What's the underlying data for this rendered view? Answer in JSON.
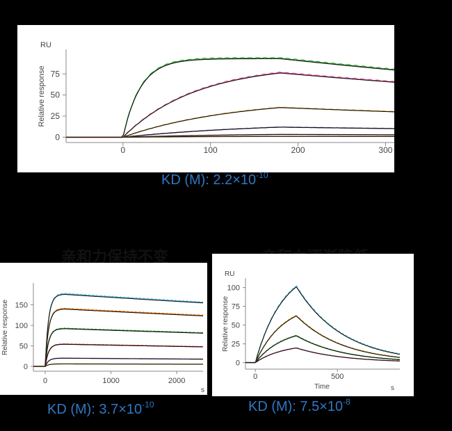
{
  "titles": {
    "bottom_left": "亲和力保持不变",
    "bottom_right": "亲和力逐渐降低"
  },
  "chart_data": [
    {
      "type": "line",
      "unit_label": "RU",
      "xlabel": "",
      "ylabel": "Relative response",
      "xlim": [
        -65,
        310
      ],
      "ylim": [
        -3,
        100
      ],
      "xticks": [
        0,
        100,
        200,
        300
      ],
      "yticks": [
        0,
        25,
        50,
        75
      ],
      "kinetics": {
        "t_on": 0,
        "t_off": 180
      },
      "series": [
        {
          "color": "#2ca02c",
          "rmax": 93,
          "kon": 0.05,
          "koff": 0.0012,
          "t_start": 0
        },
        {
          "color": "#e0509a",
          "rmax": 86,
          "kon": 0.012,
          "koff": 0.0012,
          "t_start": 0
        },
        {
          "color": "#e0a020",
          "rmax": 46,
          "kon": 0.008,
          "koff": 0.0012,
          "t_start": 0
        },
        {
          "color": "#6a3d9a",
          "rmax": 18,
          "kon": 0.006,
          "koff": 0.0012,
          "t_start": 0
        },
        {
          "color": "#8c564b",
          "rmax": 5,
          "kon": 0.006,
          "koff": 0.0012,
          "t_start": 0
        },
        {
          "color": "#ff7f0e",
          "rmax": 1.5,
          "kon": 0.006,
          "koff": 0.0012,
          "t_start": 0
        }
      ],
      "kd_prefix": "KD (M): 2.2×10",
      "kd_exponent": "-10"
    },
    {
      "type": "line",
      "unit_label": "",
      "xlabel": "",
      "ylabel": "Relative response",
      "x_unit": "s",
      "xlim": [
        -180,
        2400
      ],
      "ylim": [
        -5,
        195
      ],
      "xticks": [
        0,
        1000,
        2000
      ],
      "yticks": [
        0,
        50,
        100,
        150
      ],
      "kinetics": {
        "t_on": 0,
        "t_off": 300
      },
      "series": [
        {
          "color": "#5bc0de",
          "rmax": 176,
          "kon": 0.02,
          "koff": 6e-05,
          "t_start": 0
        },
        {
          "color": "#ff7f0e",
          "rmax": 140,
          "kon": 0.02,
          "koff": 6e-05,
          "t_start": 0
        },
        {
          "color": "#2ca02c",
          "rmax": 92,
          "kon": 0.02,
          "koff": 6e-05,
          "t_start": 0
        },
        {
          "color": "#d62728",
          "rmax": 54,
          "kon": 0.02,
          "koff": 6e-05,
          "t_start": 0
        },
        {
          "color": "#9467bd",
          "rmax": 20,
          "kon": 0.02,
          "koff": 6e-05,
          "t_start": 0
        },
        {
          "color": "#e0c020",
          "rmax": 6,
          "kon": 0.02,
          "koff": 6e-05,
          "t_start": 0
        }
      ],
      "kd_prefix": "KD (M): 3.7×10",
      "kd_exponent": "-10"
    },
    {
      "type": "line",
      "unit_label": "RU",
      "xlabel": "Time",
      "ylabel": "Relative response",
      "x_unit": "s",
      "xlim": [
        -60,
        880
      ],
      "ylim": [
        -5,
        108
      ],
      "xticks": [
        0,
        500
      ],
      "yticks": [
        0,
        25,
        50,
        75,
        100
      ],
      "kinetics": {
        "t_on": 0,
        "t_off": 250
      },
      "series": [
        {
          "color": "#5bc0de",
          "rmax": 130,
          "kon": 0.006,
          "koff": 0.0035,
          "t_start": 0
        },
        {
          "color": "#e0a020",
          "rmax": 80,
          "kon": 0.006,
          "koff": 0.0035,
          "t_start": 0
        },
        {
          "color": "#2ca02c",
          "rmax": 46,
          "kon": 0.006,
          "koff": 0.0035,
          "t_start": 0
        },
        {
          "color": "#e0509a",
          "rmax": 25,
          "kon": 0.006,
          "koff": 0.0035,
          "t_start": 0
        }
      ],
      "kd_prefix": "KD (M): 7.5×10",
      "kd_exponent": "-8"
    }
  ]
}
